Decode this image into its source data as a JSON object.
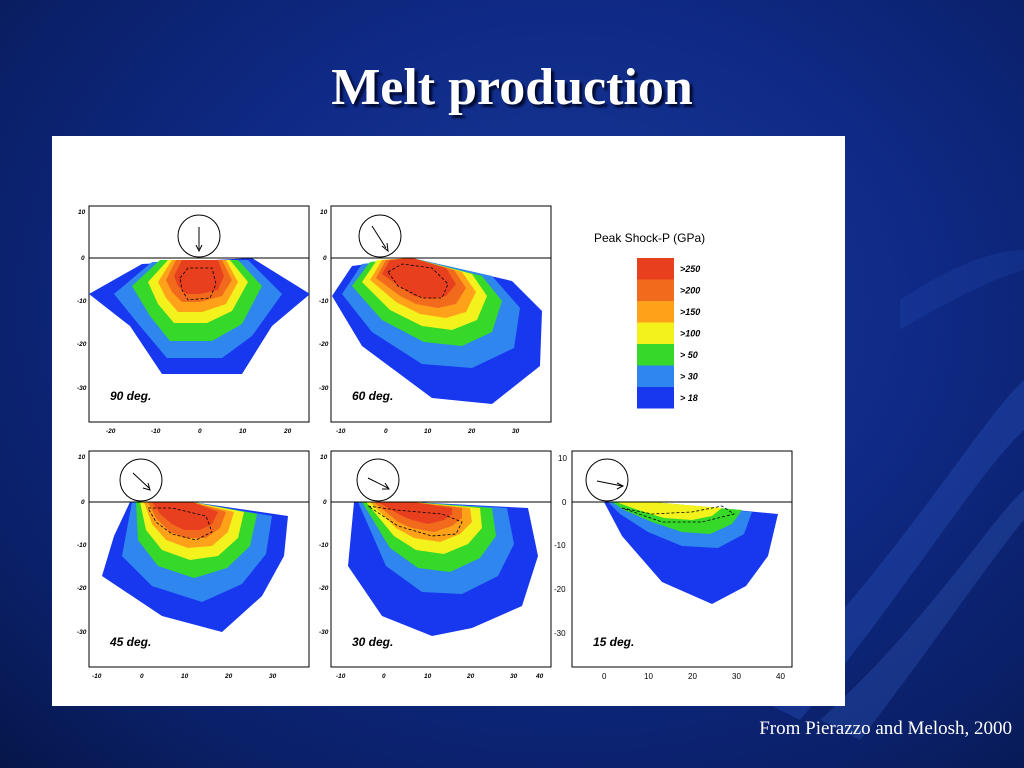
{
  "slide": {
    "title": "Melt production",
    "citation": "From Pierazzo and Melosh, 2000"
  },
  "legend": {
    "title": "Peak Shock-P (GPa)",
    "entries": [
      {
        "label": ">250",
        "color": "#e8401e"
      },
      {
        "label": ">200",
        "color": "#f26a1c"
      },
      {
        "label": ">150",
        "color": "#ffa21a"
      },
      {
        "label": ">100",
        "color": "#f4f21c"
      },
      {
        "label": "> 50",
        "color": "#36d82a"
      },
      {
        "label": "> 30",
        "color": "#2f86ef"
      },
      {
        "label": "> 18",
        "color": "#1838f0"
      }
    ]
  },
  "panels": [
    {
      "id": "p90",
      "label": "90 deg.",
      "angle_deg": 90,
      "xticks": [
        "-20",
        "-10",
        "0",
        "10",
        "20"
      ],
      "yticks": [
        "10",
        "0",
        "-10",
        "-20",
        "-30"
      ]
    },
    {
      "id": "p60",
      "label": "60 deg.",
      "angle_deg": 60,
      "xticks": [
        "-10",
        "0",
        "10",
        "20",
        "30"
      ],
      "yticks": [
        "10",
        "0",
        "-10",
        "-20",
        "-30"
      ]
    },
    {
      "id": "p45",
      "label": "45 deg.",
      "angle_deg": 45,
      "xticks": [
        "-10",
        "0",
        "10",
        "20",
        "30"
      ],
      "yticks": [
        "10",
        "0",
        "-10",
        "-20",
        "-30"
      ]
    },
    {
      "id": "p30",
      "label": "30 deg.",
      "angle_deg": 30,
      "xticks": [
        "-10",
        "0",
        "10",
        "20",
        "30",
        "40"
      ],
      "yticks": [
        "10",
        "0",
        "-10",
        "-20",
        "-30"
      ]
    },
    {
      "id": "p15",
      "label": "15 deg.",
      "angle_deg": 15,
      "xticks": [
        "0",
        "10",
        "20",
        "30",
        "40"
      ],
      "yticks": [
        "10",
        "0",
        "-10",
        "-20",
        "-30"
      ]
    }
  ]
}
